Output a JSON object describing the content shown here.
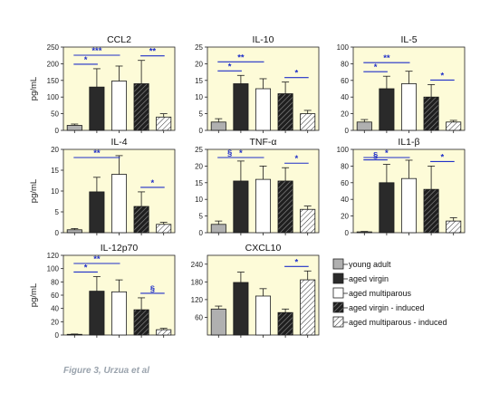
{
  "figure": {
    "caption": "Figure 3, Urzua et al",
    "colors": {
      "panel_bg": "#fdfbd8",
      "bar_outline": "#1a1a1a",
      "error_bar": "#1a1a1a",
      "significance": "#1f2fc8",
      "caption": "#9aa3ad"
    }
  },
  "legend": [
    {
      "label": "young adult",
      "fill": "gray"
    },
    {
      "label": "aged virgin",
      "fill": "black"
    },
    {
      "label": "aged multiparous",
      "fill": "white"
    },
    {
      "label": "aged virgin - induced",
      "fill": "black-hatched"
    },
    {
      "label": "aged multiparous - induced",
      "fill": "white-hatched"
    }
  ],
  "chart_data": [
    {
      "type": "bar",
      "title": "CCL2",
      "ylabel": "pg/mL",
      "ylim": [
        0,
        250
      ],
      "yticks": [
        "0",
        "50",
        "100",
        "150",
        "200",
        "250"
      ],
      "categories": [
        "young adult",
        "aged virgin",
        "aged multiparous",
        "aged virgin - induced",
        "aged multiparous - induced"
      ],
      "values": [
        15,
        130,
        148,
        140,
        40
      ],
      "errors": [
        4,
        55,
        45,
        70,
        10
      ],
      "significance": [
        {
          "from": 0,
          "to": 1,
          "label": "*"
        },
        {
          "from": 0,
          "to": 2,
          "label": "***"
        },
        {
          "from": 3,
          "to": 4,
          "label": "**"
        }
      ]
    },
    {
      "type": "bar",
      "title": "IL-10",
      "ylabel": "",
      "ylim": [
        0,
        25
      ],
      "yticks": [
        "0",
        "5",
        "10",
        "15",
        "20",
        "25"
      ],
      "categories": [
        "young adult",
        "aged virgin",
        "aged multiparous",
        "aged virgin - induced",
        "aged multiparous - induced"
      ],
      "values": [
        2.5,
        14,
        12.5,
        11,
        5
      ],
      "errors": [
        1,
        2.5,
        3,
        3.5,
        1
      ],
      "significance": [
        {
          "from": 0,
          "to": 1,
          "label": "*"
        },
        {
          "from": 0,
          "to": 2,
          "label": "**"
        },
        {
          "from": 3,
          "to": 4,
          "label": "*"
        }
      ]
    },
    {
      "type": "bar",
      "title": "IL-5",
      "ylabel": "",
      "ylim": [
        0,
        100
      ],
      "yticks": [
        "0",
        "20",
        "40",
        "60",
        "80",
        "100"
      ],
      "categories": [
        "young adult",
        "aged virgin",
        "aged multiparous",
        "aged virgin - induced",
        "aged multiparous - induced"
      ],
      "values": [
        10,
        50,
        56,
        40,
        10
      ],
      "errors": [
        3,
        15,
        15,
        15,
        2
      ],
      "significance": [
        {
          "from": 0,
          "to": 1,
          "label": "*"
        },
        {
          "from": 0,
          "to": 2,
          "label": "**"
        },
        {
          "from": 3,
          "to": 4,
          "label": "*"
        }
      ]
    },
    {
      "type": "bar",
      "title": "IL-4",
      "ylabel": "pg/mL",
      "ylim": [
        0,
        20
      ],
      "yticks": [
        "0",
        "5",
        "10",
        "15",
        "20"
      ],
      "categories": [
        "young adult",
        "aged virgin",
        "aged multiparous",
        "aged virgin - induced",
        "aged multiparous - induced"
      ],
      "values": [
        0.7,
        9.8,
        14,
        6.3,
        2
      ],
      "errors": [
        0.3,
        3.5,
        4.5,
        3.5,
        0.5
      ],
      "significance": [
        {
          "from": 0,
          "to": 2,
          "label": "**"
        },
        {
          "from": 3,
          "to": 4,
          "label": "*"
        }
      ]
    },
    {
      "type": "bar",
      "title": "TNF-α",
      "ylabel": "",
      "ylim": [
        0,
        25
      ],
      "yticks": [
        "0",
        "5",
        "10",
        "15",
        "20",
        "25"
      ],
      "categories": [
        "young adult",
        "aged virgin",
        "aged multiparous",
        "aged virgin - induced",
        "aged multiparous - induced"
      ],
      "values": [
        2.5,
        15.5,
        16,
        15.5,
        7
      ],
      "errors": [
        1,
        6,
        4,
        4,
        1
      ],
      "significance": [
        {
          "from": 0,
          "to": 1,
          "label": "§"
        },
        {
          "from": 0,
          "to": 2,
          "label": "*"
        },
        {
          "from": 3,
          "to": 4,
          "label": "*"
        }
      ]
    },
    {
      "type": "bar",
      "title": "IL1-β",
      "ylabel": "",
      "ylim": [
        0,
        100
      ],
      "yticks": [
        "0",
        "20",
        "40",
        "60",
        "80",
        "100"
      ],
      "categories": [
        "young adult",
        "aged virgin",
        "aged multiparous",
        "aged virgin - induced",
        "aged multiparous - induced"
      ],
      "values": [
        1,
        60,
        65,
        52,
        14
      ],
      "errors": [
        0.5,
        22,
        22,
        28,
        4
      ],
      "significance": [
        {
          "from": 0,
          "to": 1,
          "label": "§"
        },
        {
          "from": 0,
          "to": 2,
          "label": "*"
        },
        {
          "from": 3,
          "to": 4,
          "label": "*"
        }
      ]
    },
    {
      "type": "bar",
      "title": "IL-12p70",
      "ylabel": "pg/mL",
      "ylim": [
        0,
        120
      ],
      "yticks": [
        "0",
        "20",
        "40",
        "60",
        "80",
        "100",
        "120"
      ],
      "categories": [
        "young adult",
        "aged virgin",
        "aged multiparous",
        "aged virgin - induced",
        "aged multiparous - induced"
      ],
      "values": [
        1,
        66,
        65,
        38,
        8
      ],
      "errors": [
        0.5,
        22,
        18,
        18,
        2
      ],
      "significance": [
        {
          "from": 0,
          "to": 1,
          "label": "*"
        },
        {
          "from": 0,
          "to": 2,
          "label": "**"
        },
        {
          "from": 3,
          "to": 4,
          "label": "§"
        }
      ]
    },
    {
      "type": "bar",
      "title": "CXCL10",
      "ylabel": "",
      "ylim": [
        0,
        270
      ],
      "yticks": [
        "60",
        "120",
        "180",
        "240"
      ],
      "tick_values": [
        60,
        120,
        180,
        240
      ],
      "categories": [
        "young adult",
        "aged virgin",
        "aged multiparous",
        "aged virgin - induced",
        "aged multiparous - induced"
      ],
      "values": [
        88,
        178,
        132,
        76,
        187
      ],
      "errors": [
        10,
        35,
        25,
        12,
        30
      ],
      "significance": [
        {
          "from": 3,
          "to": 4,
          "label": "*"
        }
      ]
    }
  ]
}
